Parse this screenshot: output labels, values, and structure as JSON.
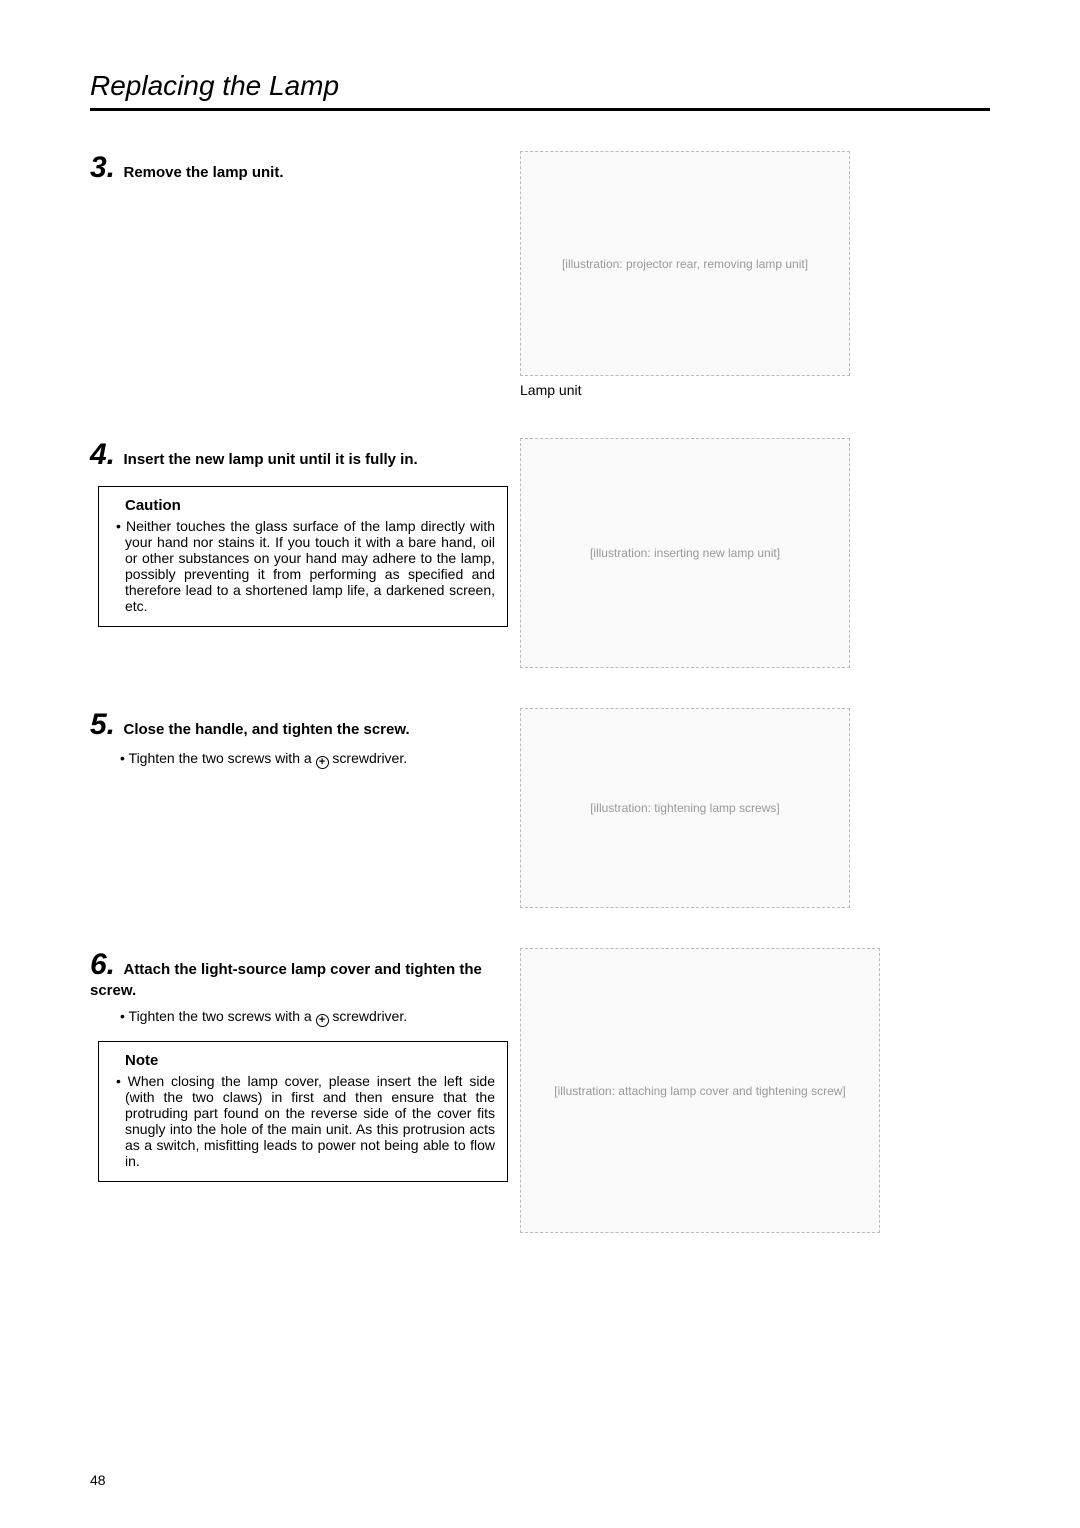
{
  "page": {
    "title": "Replacing the Lamp",
    "number": "48"
  },
  "steps": {
    "s3": {
      "num": "3.",
      "title": "Remove the lamp unit.",
      "caption": "Lamp unit",
      "illus_w": 330,
      "illus_h": 225,
      "illus_label": "[illustration: projector rear, removing lamp unit]"
    },
    "s4": {
      "num": "4.",
      "title": "Insert the new lamp unit until it is fully in.",
      "caution_heading": "Caution",
      "caution_body": "• Neither touches the glass surface of the lamp directly with your hand nor stains it. If you touch it with a bare hand, oil or other substances on your hand may adhere to the lamp, possibly preventing it from performing as specified and therefore lead to a shortened lamp life, a darkened screen, etc.",
      "illus_w": 330,
      "illus_h": 230,
      "illus_label": "[illustration: inserting new lamp unit]"
    },
    "s5": {
      "num": "5.",
      "title": "Close the handle, and tighten the screw.",
      "sub_prefix": "•  Tighten the two screws with a ",
      "sub_suffix": " screwdriver.",
      "plus": "+",
      "illus_w": 330,
      "illus_h": 200,
      "illus_label": "[illustration: tightening lamp screws]"
    },
    "s6": {
      "num": "6.",
      "title": "Attach the light-source lamp cover and tighten the screw.",
      "sub_prefix": "•  Tighten the two screws with a ",
      "sub_suffix": " screwdriver.",
      "plus": "+",
      "note_heading": "Note",
      "note_body": "• When closing the lamp cover, please insert the left side (with the two claws) in first and then ensure that the protruding part found on the reverse side of the cover fits snugly into the hole of the main unit. As this protrusion acts as a switch, misfitting leads to power not being able to flow in.",
      "illus_w": 360,
      "illus_h": 285,
      "illus_label": "[illustration: attaching lamp cover and tightening screw]"
    }
  }
}
